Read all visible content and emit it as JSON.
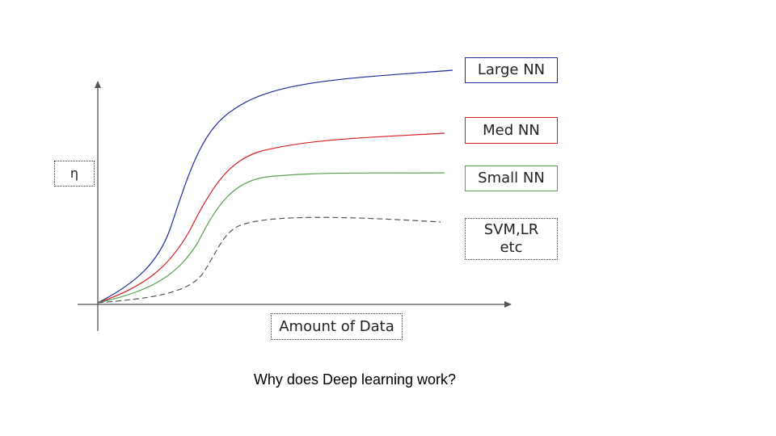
{
  "diagram": {
    "y_axis_label": "η",
    "x_axis_label": "Amount of Data",
    "caption": "Why does Deep learning work?",
    "series": [
      {
        "name": "Large NN",
        "color": "#1f2a9e",
        "dashed": false
      },
      {
        "name": "Med NN",
        "color": "#d62020",
        "dashed": false
      },
      {
        "name": "Small NN",
        "color": "#5aa050",
        "dashed": false
      },
      {
        "name_line1": "SVM,LR",
        "name_line2": "etc",
        "color": "#555555",
        "dashed": true
      }
    ]
  }
}
